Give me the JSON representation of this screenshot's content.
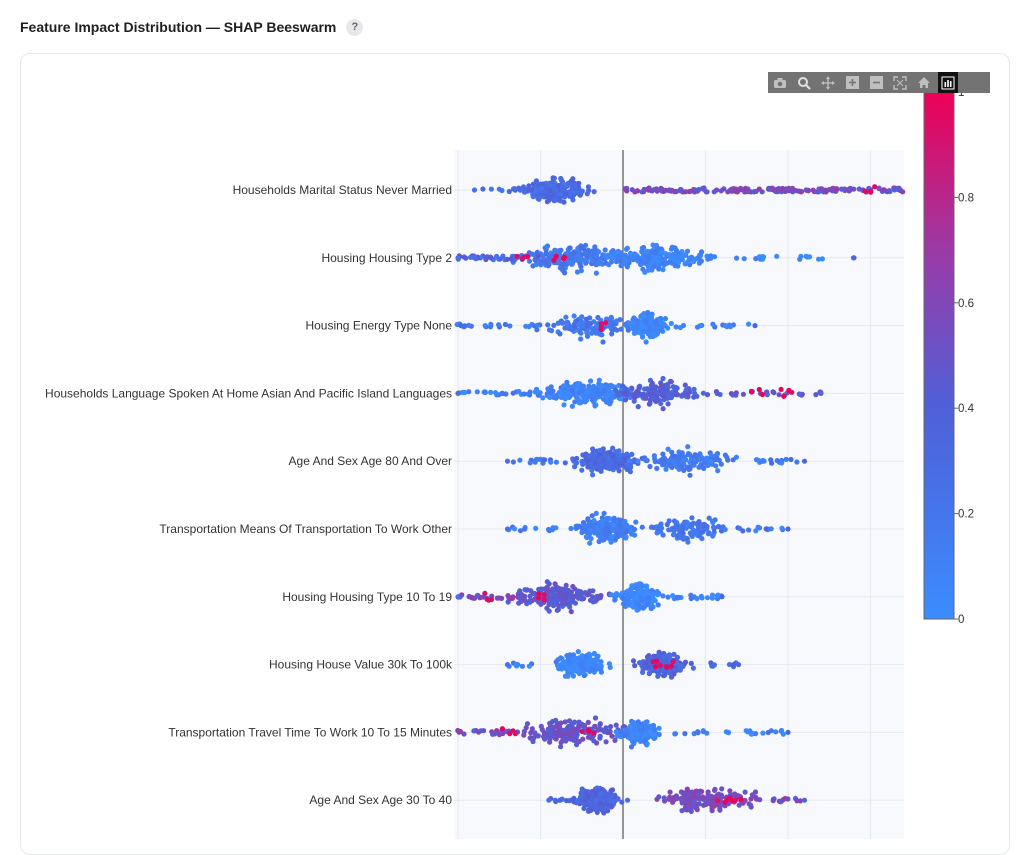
{
  "header": {
    "title": "Feature Impact Distribution — SHAP Beeswarm",
    "help_icon": "?"
  },
  "modebar": {
    "buttons": [
      "camera-icon",
      "zoom-icon",
      "pan-icon",
      "zoom-in-icon",
      "zoom-out-icon",
      "autoscale-icon",
      "home-icon",
      "plotly-logo-icon"
    ]
  },
  "chart_data": {
    "type": "scatter",
    "subtype": "beeswarm",
    "title": "Feature Impact Distribution — SHAP Beeswarm",
    "xlabel": "",
    "ylabel": "",
    "xlim": [
      -0.18,
      0.3
    ],
    "zero_line": 0,
    "grid": true,
    "features": [
      {
        "name": "Households Marital Status Never Married",
        "min": -0.09,
        "max": 0.27,
        "clusters": [
          {
            "c": -0.04,
            "w": 0.035,
            "n": 220,
            "color": 0.3
          }
        ],
        "tail_left": {
          "from": -0.09,
          "to": -0.045,
          "n": 10,
          "color": 0.3
        },
        "tail_right": {
          "from": 0.0,
          "to": 0.27,
          "n": 300,
          "color": 0.55
        },
        "highlights": [
          0.15,
          0.21,
          0.24
        ]
      },
      {
        "name": "Housing Housing Type 2",
        "min": -0.1,
        "max": 0.14,
        "clusters": [
          {
            "c": -0.03,
            "w": 0.06,
            "n": 200,
            "color": 0.18
          },
          {
            "c": 0.02,
            "w": 0.05,
            "n": 220,
            "color": 0.08
          }
        ],
        "tail_left": {
          "from": -0.1,
          "to": -0.05,
          "n": 40,
          "color": 0.35
        },
        "tail_right": {
          "from": 0.05,
          "to": 0.14,
          "n": 20,
          "color": 0.05
        },
        "highlights": [
          -0.06,
          -0.04
        ]
      },
      {
        "name": "Housing Energy Type None",
        "min": -0.13,
        "max": 0.08,
        "clusters": [
          {
            "c": -0.02,
            "w": 0.05,
            "n": 120,
            "color": 0.2
          },
          {
            "c": 0.015,
            "w": 0.02,
            "n": 200,
            "color": 0.05
          }
        ],
        "tail_left": {
          "from": -0.13,
          "to": -0.05,
          "n": 35,
          "color": 0.2
        },
        "tail_right": {
          "from": 0.03,
          "to": 0.08,
          "n": 15,
          "color": 0.08
        },
        "highlights": [
          -0.01
        ]
      },
      {
        "name": "Households Language Spoken At Home Asian And Pacific Island Languages",
        "min": -0.1,
        "max": 0.12,
        "clusters": [
          {
            "c": -0.02,
            "w": 0.05,
            "n": 240,
            "color": 0.08
          },
          {
            "c": 0.02,
            "w": 0.04,
            "n": 140,
            "color": 0.4
          }
        ],
        "tail_left": {
          "from": -0.1,
          "to": -0.05,
          "n": 25,
          "color": 0.1
        },
        "tail_right": {
          "from": 0.05,
          "to": 0.12,
          "n": 25,
          "color": 0.45
        },
        "highlights": [
          0.08,
          0.1
        ]
      },
      {
        "name": "Age And Sex Age 80  And Over",
        "min": -0.07,
        "max": 0.11,
        "clusters": [
          {
            "c": -0.01,
            "w": 0.035,
            "n": 220,
            "color": 0.3
          },
          {
            "c": 0.04,
            "w": 0.05,
            "n": 150,
            "color": 0.15
          }
        ],
        "tail_left": {
          "from": -0.07,
          "to": -0.04,
          "n": 15,
          "color": 0.2
        },
        "tail_right": {
          "from": 0.08,
          "to": 0.11,
          "n": 15,
          "color": 0.15
        },
        "highlights": []
      },
      {
        "name": "Transportation Means Of Transportation To Work Other",
        "min": -0.07,
        "max": 0.1,
        "clusters": [
          {
            "c": -0.01,
            "w": 0.035,
            "n": 200,
            "color": 0.12
          },
          {
            "c": 0.04,
            "w": 0.04,
            "n": 120,
            "color": 0.2
          }
        ],
        "tail_left": {
          "from": -0.07,
          "to": -0.04,
          "n": 12,
          "color": 0.1
        },
        "tail_right": {
          "from": 0.07,
          "to": 0.1,
          "n": 12,
          "color": 0.2
        },
        "highlights": []
      },
      {
        "name": "Housing Housing Type 10 To 19",
        "min": -0.1,
        "max": 0.06,
        "clusters": [
          {
            "c": -0.04,
            "w": 0.05,
            "n": 190,
            "color": 0.45
          },
          {
            "c": 0.01,
            "w": 0.025,
            "n": 200,
            "color": 0.05
          }
        ],
        "tail_left": {
          "from": -0.1,
          "to": -0.06,
          "n": 30,
          "color": 0.55
        },
        "tail_right": {
          "from": 0.03,
          "to": 0.06,
          "n": 20,
          "color": 0.05
        },
        "highlights": [
          -0.08,
          -0.05
        ]
      },
      {
        "name": "Housing House Value 30k To 100k",
        "min": -0.07,
        "max": 0.07,
        "clusters": [
          {
            "c": -0.025,
            "w": 0.025,
            "n": 180,
            "color": 0.05
          },
          {
            "c": 0.025,
            "w": 0.03,
            "n": 150,
            "color": 0.35
          }
        ],
        "tail_left": {
          "from": -0.07,
          "to": -0.05,
          "n": 8,
          "color": 0.05
        },
        "tail_right": {
          "from": 0.05,
          "to": 0.07,
          "n": 8,
          "color": 0.3
        },
        "highlights": [
          0.02,
          0.03
        ]
      },
      {
        "name": "Transportation Travel Time To Work 10 To 15 Minutes",
        "min": -0.16,
        "max": 0.1,
        "clusters": [
          {
            "c": -0.03,
            "w": 0.06,
            "n": 180,
            "color": 0.5
          },
          {
            "c": 0.01,
            "w": 0.02,
            "n": 160,
            "color": 0.08
          }
        ],
        "tail_left": {
          "from": -0.16,
          "to": -0.07,
          "n": 45,
          "color": 0.55
        },
        "tail_right": {
          "from": 0.03,
          "to": 0.1,
          "n": 25,
          "color": 0.1
        },
        "highlights": [
          -0.07,
          -0.02
        ]
      },
      {
        "name": "Age And Sex Age 30 To 40",
        "min": -0.045,
        "max": 0.11,
        "clusters": [
          {
            "c": -0.015,
            "w": 0.025,
            "n": 200,
            "color": 0.35
          },
          {
            "c": 0.05,
            "w": 0.05,
            "n": 170,
            "color": 0.55
          }
        ],
        "tail_left": {
          "from": -0.045,
          "to": -0.025,
          "n": 10,
          "color": 0.3
        },
        "tail_right": {
          "from": 0.09,
          "to": 0.11,
          "n": 12,
          "color": 0.5
        },
        "highlights": [
          0.06,
          0.07
        ]
      }
    ],
    "colorbar": {
      "min": 0,
      "max": 1,
      "ticks": [
        "1",
        "0.8",
        "0.6",
        "0.4",
        "0.2",
        "0"
      ],
      "low_color": "#3b8cff",
      "mid_color": "#5a50c8",
      "high_color": "#ee0055"
    }
  }
}
